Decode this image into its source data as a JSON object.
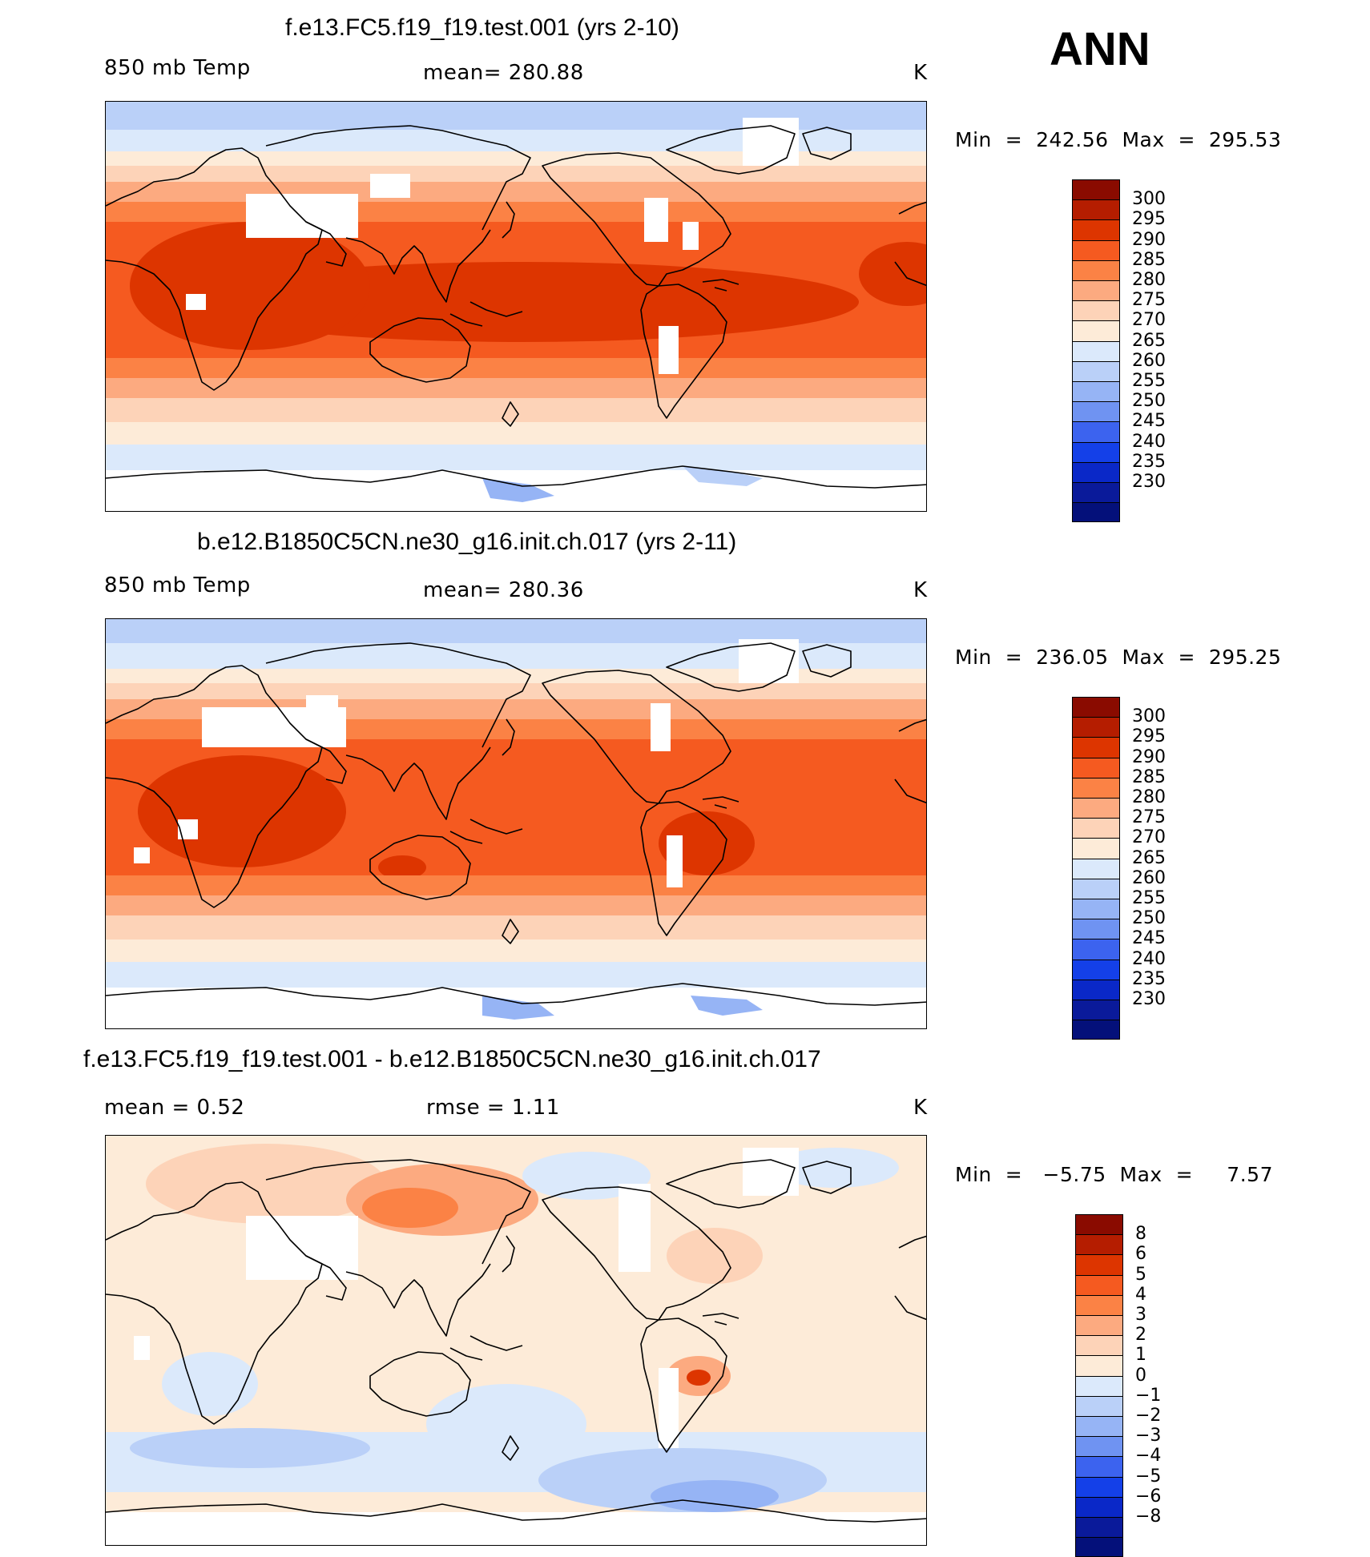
{
  "ann_label": "ANN",
  "panels": [
    {
      "id": "top",
      "title": "f.e13.FC5.f19_f19.test.001 (yrs 2-10)",
      "variable": "850 mb Temp",
      "stat": "mean=  280.88",
      "units": "K",
      "minmax": "Min  =  242.56  Max  =  295.53",
      "colorbar": {
        "colors": [
          "#8a0b00",
          "#b51d00",
          "#dd3500",
          "#f55a20",
          "#fb8245",
          "#fcaa80",
          "#fdd3b8",
          "#fdebd8",
          "#dbe9fb",
          "#bad0f8",
          "#96b4f5",
          "#6f93f2",
          "#3c63ef",
          "#1440e8",
          "#0a28c8",
          "#0a1a9a",
          "#04107a"
        ],
        "labels": [
          "300",
          "295",
          "290",
          "285",
          "280",
          "275",
          "270",
          "265",
          "260",
          "255",
          "250",
          "245",
          "240",
          "235",
          "230"
        ]
      }
    },
    {
      "id": "middle",
      "title": "b.e12.B1850C5CN.ne30_g16.init.ch.017 (yrs 2-11)",
      "variable": "850 mb Temp",
      "stat": "mean=  280.36",
      "units": "K",
      "minmax": "Min  =  236.05  Max  =  295.25",
      "colorbar": {
        "colors": [
          "#8a0b00",
          "#b51d00",
          "#dd3500",
          "#f55a20",
          "#fb8245",
          "#fcaa80",
          "#fdd3b8",
          "#fdebd8",
          "#dbe9fb",
          "#bad0f8",
          "#96b4f5",
          "#6f93f2",
          "#3c63ef",
          "#1440e8",
          "#0a28c8",
          "#0a1a9a",
          "#04107a"
        ],
        "labels": [
          "300",
          "295",
          "290",
          "285",
          "280",
          "275",
          "270",
          "265",
          "260",
          "255",
          "250",
          "245",
          "240",
          "235",
          "230"
        ]
      }
    },
    {
      "id": "diff",
      "title": "f.e13.FC5.f19_f19.test.001 - b.e12.B1850C5CN.ne30_g16.init.ch.017",
      "variable": "mean  =     0.52",
      "stat": "rmse  =     1.11",
      "units": "K",
      "minmax": "Min  =   −5.75  Max  =     7.57",
      "colorbar": {
        "colors": [
          "#8a0b00",
          "#b51d00",
          "#dd3500",
          "#f55a20",
          "#fb8245",
          "#fcaa80",
          "#fdd3b8",
          "#fdebd8",
          "#dbe9fb",
          "#bad0f8",
          "#96b4f5",
          "#6f93f2",
          "#3c63ef",
          "#1440e8",
          "#0a28c8",
          "#0a1a9a",
          "#04107a"
        ],
        "labels": [
          "8",
          "6",
          "5",
          "4",
          "3",
          "2",
          "1",
          "0",
          "−1",
          "−2",
          "−3",
          "−4",
          "−5",
          "−6",
          "−8"
        ]
      }
    }
  ],
  "chart_data": {
    "type": "heatmap",
    "title": "ANN",
    "field": "850 mb Temp",
    "units": "K",
    "projection": "cylindrical equidistant, Pacific-centered",
    "panels": [
      {
        "case": "f.e13.FC5.f19_f19.test.001 (yrs 2-10)",
        "mean": 280.88,
        "min": 242.56,
        "max": 295.53,
        "contour_levels": [
          230,
          235,
          240,
          245,
          250,
          255,
          260,
          265,
          270,
          275,
          280,
          285,
          290,
          295,
          300
        ]
      },
      {
        "case": "b.e12.B1850C5CN.ne30_g16.init.ch.017 (yrs 2-11)",
        "mean": 280.36,
        "min": 236.05,
        "max": 295.25,
        "contour_levels": [
          230,
          235,
          240,
          245,
          250,
          255,
          260,
          265,
          270,
          275,
          280,
          285,
          290,
          295,
          300
        ]
      },
      {
        "case": "f.e13.FC5.f19_f19.test.001 - b.e12.B1850C5CN.ne30_g16.init.ch.017",
        "mean": 0.52,
        "rmse": 1.11,
        "min": -5.75,
        "max": 7.57,
        "contour_levels": [
          -8,
          -6,
          -5,
          -4,
          -3,
          -2,
          -1,
          0,
          1,
          2,
          3,
          4,
          5,
          6,
          8
        ]
      }
    ]
  }
}
